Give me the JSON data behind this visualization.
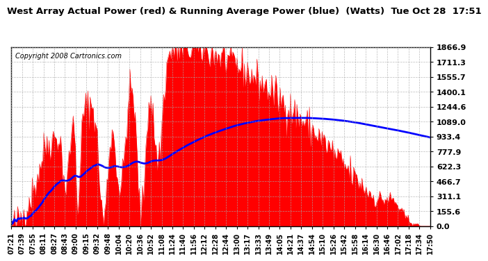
{
  "title": "West Array Actual Power (red) & Running Average Power (blue)  (Watts)  Tue Oct 28  17:51",
  "copyright": "Copyright 2008 Cartronics.com",
  "background_color": "#ffffff",
  "plot_bg_color": "#ffffff",
  "grid_color": "#aaaaaa",
  "yticks": [
    0.0,
    155.6,
    311.1,
    466.7,
    622.3,
    777.9,
    933.4,
    1089.0,
    1244.6,
    1400.1,
    1555.7,
    1711.3,
    1866.9
  ],
  "ymax": 1866.9,
  "actual_color": "#ff0000",
  "avg_color": "#0000ff",
  "xtick_labels": [
    "07:21",
    "07:39",
    "07:55",
    "08:11",
    "08:27",
    "08:43",
    "09:00",
    "09:15",
    "09:32",
    "09:48",
    "10:04",
    "10:20",
    "10:36",
    "10:52",
    "11:08",
    "11:24",
    "11:40",
    "11:56",
    "12:12",
    "12:28",
    "12:44",
    "13:00",
    "13:17",
    "13:33",
    "13:49",
    "14:05",
    "14:21",
    "14:37",
    "14:54",
    "15:10",
    "15:26",
    "15:42",
    "15:58",
    "16:14",
    "16:30",
    "16:46",
    "17:02",
    "17:18",
    "17:34",
    "17:50"
  ]
}
